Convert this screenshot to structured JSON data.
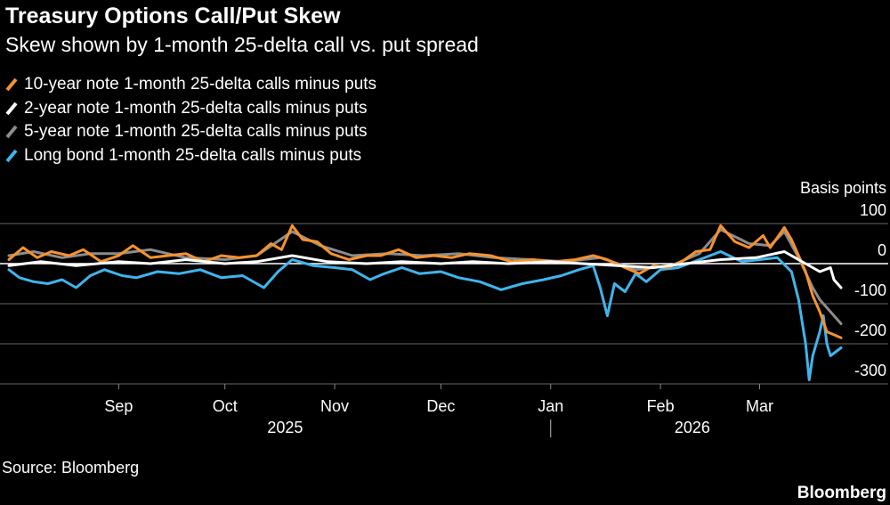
{
  "title": "Treasury Options Call/Put Skew",
  "subtitle": "Skew shown by 1-month 25-delta call vs. put spread",
  "source": "Source: Bloomberg",
  "brand": "Bloomberg",
  "chart_data": {
    "type": "line",
    "title": "Treasury Options Call/Put Skew",
    "subtitle": "Skew shown by 1-month 25-delta call vs. put spread",
    "ylabel": "Basis points",
    "ylim": [
      -300,
      100
    ],
    "yticks": [
      100,
      0,
      -100,
      -200,
      -300
    ],
    "ytick_labels": [
      "100",
      "0",
      "-100",
      "-200",
      "-300"
    ],
    "y_axis_position": "right",
    "grid": true,
    "x_range": [
      "2025-08-01",
      "2026-03-24"
    ],
    "month_ticks": [
      {
        "label": "Sep",
        "date": "2025-09-01"
      },
      {
        "label": "Oct",
        "date": "2025-10-01"
      },
      {
        "label": "Nov",
        "date": "2025-11-01"
      },
      {
        "label": "Dec",
        "date": "2025-12-01"
      },
      {
        "label": "Jan",
        "date": "2026-01-01"
      },
      {
        "label": "Feb",
        "date": "2026-02-01"
      },
      {
        "label": "Mar",
        "date": "2026-03-01"
      }
    ],
    "year_labels": [
      {
        "label": "2025",
        "date": "2025-10-18"
      },
      {
        "label": "2026",
        "date": "2026-02-10"
      }
    ],
    "year_divider_date": "2026-01-01",
    "legend_position": "top-left",
    "series": [
      {
        "name": "10-year note 1-month 25-delta calls minus puts",
        "color": "#f7922e",
        "points": [
          [
            "2025-08-01",
            10
          ],
          [
            "2025-08-05",
            40
          ],
          [
            "2025-08-09",
            15
          ],
          [
            "2025-08-13",
            30
          ],
          [
            "2025-08-18",
            20
          ],
          [
            "2025-08-22",
            35
          ],
          [
            "2025-08-27",
            5
          ],
          [
            "2025-09-01",
            20
          ],
          [
            "2025-09-05",
            45
          ],
          [
            "2025-09-10",
            15
          ],
          [
            "2025-09-15",
            20
          ],
          [
            "2025-09-20",
            25
          ],
          [
            "2025-09-25",
            5
          ],
          [
            "2025-09-30",
            20
          ],
          [
            "2025-10-05",
            15
          ],
          [
            "2025-10-10",
            20
          ],
          [
            "2025-10-14",
            50
          ],
          [
            "2025-10-17",
            35
          ],
          [
            "2025-10-20",
            95
          ],
          [
            "2025-10-23",
            60
          ],
          [
            "2025-10-27",
            55
          ],
          [
            "2025-10-31",
            25
          ],
          [
            "2025-11-05",
            10
          ],
          [
            "2025-11-10",
            20
          ],
          [
            "2025-11-14",
            20
          ],
          [
            "2025-11-19",
            35
          ],
          [
            "2025-11-24",
            15
          ],
          [
            "2025-11-29",
            20
          ],
          [
            "2025-12-04",
            15
          ],
          [
            "2025-12-09",
            25
          ],
          [
            "2025-12-15",
            20
          ],
          [
            "2025-12-21",
            5
          ],
          [
            "2025-12-27",
            10
          ],
          [
            "2026-01-02",
            5
          ],
          [
            "2026-01-08",
            10
          ],
          [
            "2026-01-13",
            20
          ],
          [
            "2026-01-17",
            10
          ],
          [
            "2026-01-22",
            -10
          ],
          [
            "2026-01-26",
            -25
          ],
          [
            "2026-01-30",
            -5
          ],
          [
            "2026-02-03",
            -10
          ],
          [
            "2026-02-07",
            5
          ],
          [
            "2026-02-11",
            30
          ],
          [
            "2026-02-15",
            35
          ],
          [
            "2026-02-18",
            95
          ],
          [
            "2026-02-22",
            55
          ],
          [
            "2026-02-26",
            40
          ],
          [
            "2026-03-02",
            70
          ],
          [
            "2026-03-04",
            40
          ],
          [
            "2026-03-06",
            65
          ],
          [
            "2026-03-08",
            90
          ],
          [
            "2026-03-10",
            60
          ],
          [
            "2026-03-12",
            20
          ],
          [
            "2026-03-14",
            -20
          ],
          [
            "2026-03-16",
            -80
          ],
          [
            "2026-03-18",
            -120
          ],
          [
            "2026-03-20",
            -170
          ],
          [
            "2026-03-24",
            -185
          ]
        ]
      },
      {
        "name": "2-year note 1-month 25-delta calls minus puts",
        "color": "#ffffff",
        "points": [
          [
            "2025-08-01",
            -5
          ],
          [
            "2025-08-10",
            5
          ],
          [
            "2025-08-20",
            -5
          ],
          [
            "2025-09-01",
            5
          ],
          [
            "2025-09-10",
            0
          ],
          [
            "2025-09-20",
            10
          ],
          [
            "2025-10-01",
            0
          ],
          [
            "2025-10-10",
            5
          ],
          [
            "2025-10-20",
            20
          ],
          [
            "2025-10-30",
            5
          ],
          [
            "2025-11-10",
            0
          ],
          [
            "2025-11-20",
            5
          ],
          [
            "2025-12-01",
            0
          ],
          [
            "2025-12-10",
            5
          ],
          [
            "2025-12-20",
            0
          ],
          [
            "2026-01-01",
            5
          ],
          [
            "2026-01-10",
            0
          ],
          [
            "2026-01-20",
            -5
          ],
          [
            "2026-01-30",
            -10
          ],
          [
            "2026-02-08",
            0
          ],
          [
            "2026-02-18",
            10
          ],
          [
            "2026-02-28",
            15
          ],
          [
            "2026-03-08",
            30
          ],
          [
            "2026-03-14",
            0
          ],
          [
            "2026-03-18",
            -20
          ],
          [
            "2026-03-21",
            -10
          ],
          [
            "2026-03-22",
            -40
          ],
          [
            "2026-03-24",
            -60
          ]
        ]
      },
      {
        "name": "5-year note 1-month 25-delta calls minus puts",
        "color": "#8c8c8c",
        "points": [
          [
            "2025-08-01",
            20
          ],
          [
            "2025-08-08",
            30
          ],
          [
            "2025-08-16",
            15
          ],
          [
            "2025-08-24",
            25
          ],
          [
            "2025-09-01",
            25
          ],
          [
            "2025-09-10",
            35
          ],
          [
            "2025-09-20",
            15
          ],
          [
            "2025-10-01",
            10
          ],
          [
            "2025-10-10",
            20
          ],
          [
            "2025-10-20",
            80
          ],
          [
            "2025-10-28",
            45
          ],
          [
            "2025-11-06",
            20
          ],
          [
            "2025-11-16",
            25
          ],
          [
            "2025-11-26",
            20
          ],
          [
            "2025-12-06",
            25
          ],
          [
            "2025-12-16",
            15
          ],
          [
            "2025-12-26",
            10
          ],
          [
            "2026-01-05",
            5
          ],
          [
            "2026-01-15",
            15
          ],
          [
            "2026-01-25",
            -15
          ],
          [
            "2026-02-04",
            -5
          ],
          [
            "2026-02-12",
            25
          ],
          [
            "2026-02-18",
            85
          ],
          [
            "2026-02-26",
            50
          ],
          [
            "2026-03-04",
            45
          ],
          [
            "2026-03-08",
            80
          ],
          [
            "2026-03-12",
            15
          ],
          [
            "2026-03-16",
            -60
          ],
          [
            "2026-03-18",
            -90
          ],
          [
            "2026-03-20",
            -110
          ],
          [
            "2026-03-24",
            -150
          ]
        ]
      },
      {
        "name": "Long bond 1-month 25-delta calls minus puts",
        "color": "#40b4ec",
        "points": [
          [
            "2025-08-01",
            -15
          ],
          [
            "2025-08-04",
            -35
          ],
          [
            "2025-08-08",
            -45
          ],
          [
            "2025-08-12",
            -50
          ],
          [
            "2025-08-16",
            -40
          ],
          [
            "2025-08-20",
            -60
          ],
          [
            "2025-08-24",
            -30
          ],
          [
            "2025-08-28",
            -15
          ],
          [
            "2025-09-02",
            -30
          ],
          [
            "2025-09-06",
            -35
          ],
          [
            "2025-09-12",
            -20
          ],
          [
            "2025-09-18",
            -25
          ],
          [
            "2025-09-24",
            -15
          ],
          [
            "2025-09-30",
            -35
          ],
          [
            "2025-10-06",
            -30
          ],
          [
            "2025-10-12",
            -60
          ],
          [
            "2025-10-16",
            -20
          ],
          [
            "2025-10-20",
            10
          ],
          [
            "2025-10-26",
            -5
          ],
          [
            "2025-11-01",
            -10
          ],
          [
            "2025-11-06",
            -15
          ],
          [
            "2025-11-11",
            -40
          ],
          [
            "2025-11-15",
            -25
          ],
          [
            "2025-11-20",
            -10
          ],
          [
            "2025-11-25",
            -25
          ],
          [
            "2025-12-01",
            -20
          ],
          [
            "2025-12-06",
            -35
          ],
          [
            "2025-12-12",
            -45
          ],
          [
            "2025-12-18",
            -65
          ],
          [
            "2025-12-24",
            -50
          ],
          [
            "2025-12-30",
            -40
          ],
          [
            "2026-01-04",
            -30
          ],
          [
            "2026-01-09",
            -15
          ],
          [
            "2026-01-13",
            -5
          ],
          [
            "2026-01-15",
            -60
          ],
          [
            "2026-01-17",
            -130
          ],
          [
            "2026-01-19",
            -50
          ],
          [
            "2026-01-22",
            -70
          ],
          [
            "2026-01-25",
            -25
          ],
          [
            "2026-01-28",
            -45
          ],
          [
            "2026-02-01",
            -15
          ],
          [
            "2026-02-06",
            -10
          ],
          [
            "2026-02-12",
            10
          ],
          [
            "2026-02-18",
            30
          ],
          [
            "2026-02-24",
            5
          ],
          [
            "2026-03-01",
            10
          ],
          [
            "2026-03-06",
            15
          ],
          [
            "2026-03-10",
            -20
          ],
          [
            "2026-03-12",
            -90
          ],
          [
            "2026-03-14",
            -200
          ],
          [
            "2026-03-15",
            -290
          ],
          [
            "2026-03-16",
            -230
          ],
          [
            "2026-03-18",
            -170
          ],
          [
            "2026-03-19",
            -130
          ],
          [
            "2026-03-20",
            -200
          ],
          [
            "2026-03-21",
            -230
          ],
          [
            "2026-03-24",
            -210
          ]
        ]
      }
    ]
  }
}
